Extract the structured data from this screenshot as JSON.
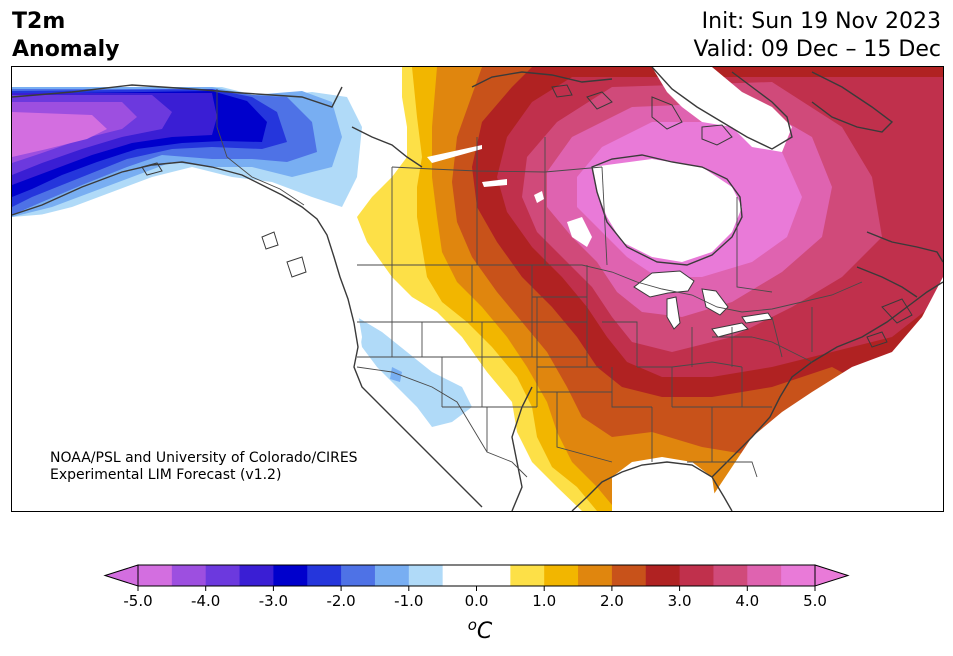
{
  "title": {
    "line1": "T2m",
    "line2": "Anomaly"
  },
  "dates": {
    "init": "Init: Sun 19 Nov 2023",
    "valid": "Valid: 09 Dec – 15 Dec"
  },
  "credit": {
    "line1": "NOAA/PSL and University of Colorado/CIRES",
    "line2": "Experimental LIM Forecast (v1.2)"
  },
  "colorbar": {
    "unit": "°C",
    "unit_display": "oC",
    "tick_labels": [
      "-5.0",
      "-4.0",
      "-3.0",
      "-2.0",
      "-1.0",
      "0.0",
      "1.0",
      "2.0",
      "3.0",
      "4.0",
      "5.0"
    ],
    "ticks": [
      -5,
      -4,
      -3,
      -2,
      -1,
      0,
      1,
      2,
      3,
      4,
      5
    ],
    "range": [
      -5,
      5
    ],
    "bins": [
      {
        "min": -5.0,
        "max": -4.5,
        "color": "#d36ee0"
      },
      {
        "min": -4.5,
        "max": -4.0,
        "color": "#9d4fe0"
      },
      {
        "min": -4.0,
        "max": -3.5,
        "color": "#6c39de"
      },
      {
        "min": -3.5,
        "max": -3.0,
        "color": "#3a1ed4"
      },
      {
        "min": -3.0,
        "max": -2.5,
        "color": "#0000cc"
      },
      {
        "min": -2.5,
        "max": -2.0,
        "color": "#2536dc"
      },
      {
        "min": -2.0,
        "max": -1.5,
        "color": "#4e72e6"
      },
      {
        "min": -1.5,
        "max": -1.0,
        "color": "#78aef2"
      },
      {
        "min": -1.0,
        "max": -0.5,
        "color": "#b0daf8"
      },
      {
        "min": -0.5,
        "max": 0.5,
        "color": "#ffffff"
      },
      {
        "min": 0.5,
        "max": 1.0,
        "color": "#fde047"
      },
      {
        "min": 1.0,
        "max": 1.5,
        "color": "#f2b600"
      },
      {
        "min": 1.5,
        "max": 2.0,
        "color": "#e0860e"
      },
      {
        "min": 2.0,
        "max": 2.5,
        "color": "#c8521a"
      },
      {
        "min": 2.5,
        "max": 3.0,
        "color": "#b02222"
      },
      {
        "min": 3.0,
        "max": 3.5,
        "color": "#c0304c"
      },
      {
        "min": 3.5,
        "max": 4.0,
        "color": "#d04a7a"
      },
      {
        "min": 4.0,
        "max": 4.5,
        "color": "#df63b0"
      },
      {
        "min": 4.5,
        "max": 5.0,
        "color": "#e97ad8"
      }
    ],
    "under_color": "#d36ee0",
    "over_color": "#e97ad8"
  },
  "map": {
    "region": "North America",
    "land_color": "#ffffff",
    "border_color": "#3a3a3a"
  }
}
